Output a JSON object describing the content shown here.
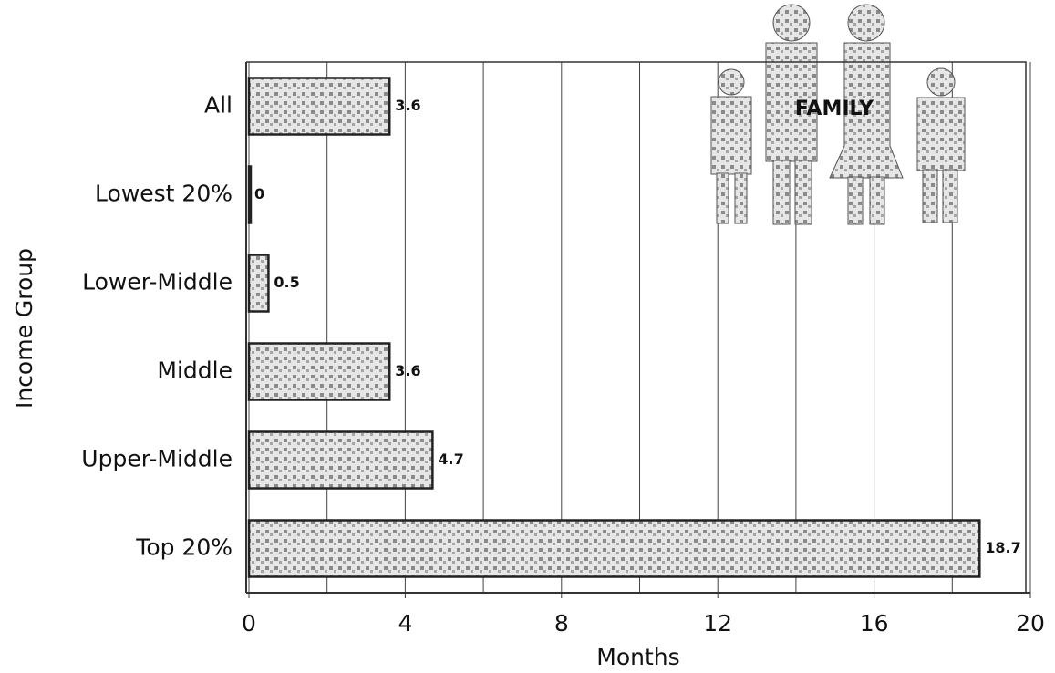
{
  "chart_data": {
    "type": "barh",
    "y_label": "Income Group",
    "x_label": "Months",
    "annotation": "FAMILY",
    "categories": [
      "All",
      "Lowest 20%",
      "Lower-Middle",
      "Middle",
      "Upper-Middle",
      "Top 20%"
    ],
    "values": [
      3.6,
      0,
      0.5,
      3.6,
      4.7,
      18.7
    ],
    "color": "#b8b8b8",
    "xlim": [
      0,
      20
    ],
    "xticks": [
      0,
      4,
      8,
      12,
      16,
      20
    ],
    "minor_xticks": [
      2,
      6,
      10,
      14,
      18
    ],
    "grid": true
  }
}
